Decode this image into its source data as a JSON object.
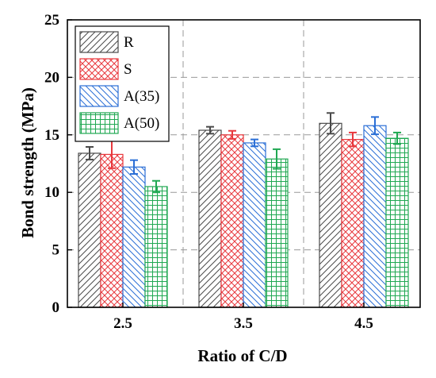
{
  "chart_data": {
    "type": "bar",
    "title": "",
    "xlabel": "Ratio of C/D",
    "ylabel": "Bond strength  (MPa)",
    "categories": [
      "2.5",
      "3.5",
      "4.5"
    ],
    "ylim": [
      0,
      25
    ],
    "yticks": [
      "0",
      "5",
      "10",
      "15",
      "20",
      "25"
    ],
    "grid": "dashed, major ticks",
    "legend_position": "top-left",
    "series": [
      {
        "name": "R",
        "color": "#4a4a4a",
        "pattern": "diagonal",
        "values": [
          13.4,
          15.4,
          16.0
        ],
        "errors": [
          0.55,
          0.3,
          0.9
        ]
      },
      {
        "name": "S",
        "color": "#e8383d",
        "pattern": "crosshatch",
        "values": [
          13.3,
          15.0,
          14.6
        ],
        "errors": [
          1.2,
          0.35,
          0.6
        ]
      },
      {
        "name": "A(35)",
        "color": "#2b6fd6",
        "pattern": "backdiagonal",
        "values": [
          12.2,
          14.3,
          15.8
        ],
        "errors": [
          0.6,
          0.3,
          0.75
        ]
      },
      {
        "name": "A(50)",
        "color": "#20a852",
        "pattern": "grid",
        "values": [
          10.5,
          12.9,
          14.7
        ],
        "errors": [
          0.5,
          0.85,
          0.5
        ]
      }
    ]
  }
}
